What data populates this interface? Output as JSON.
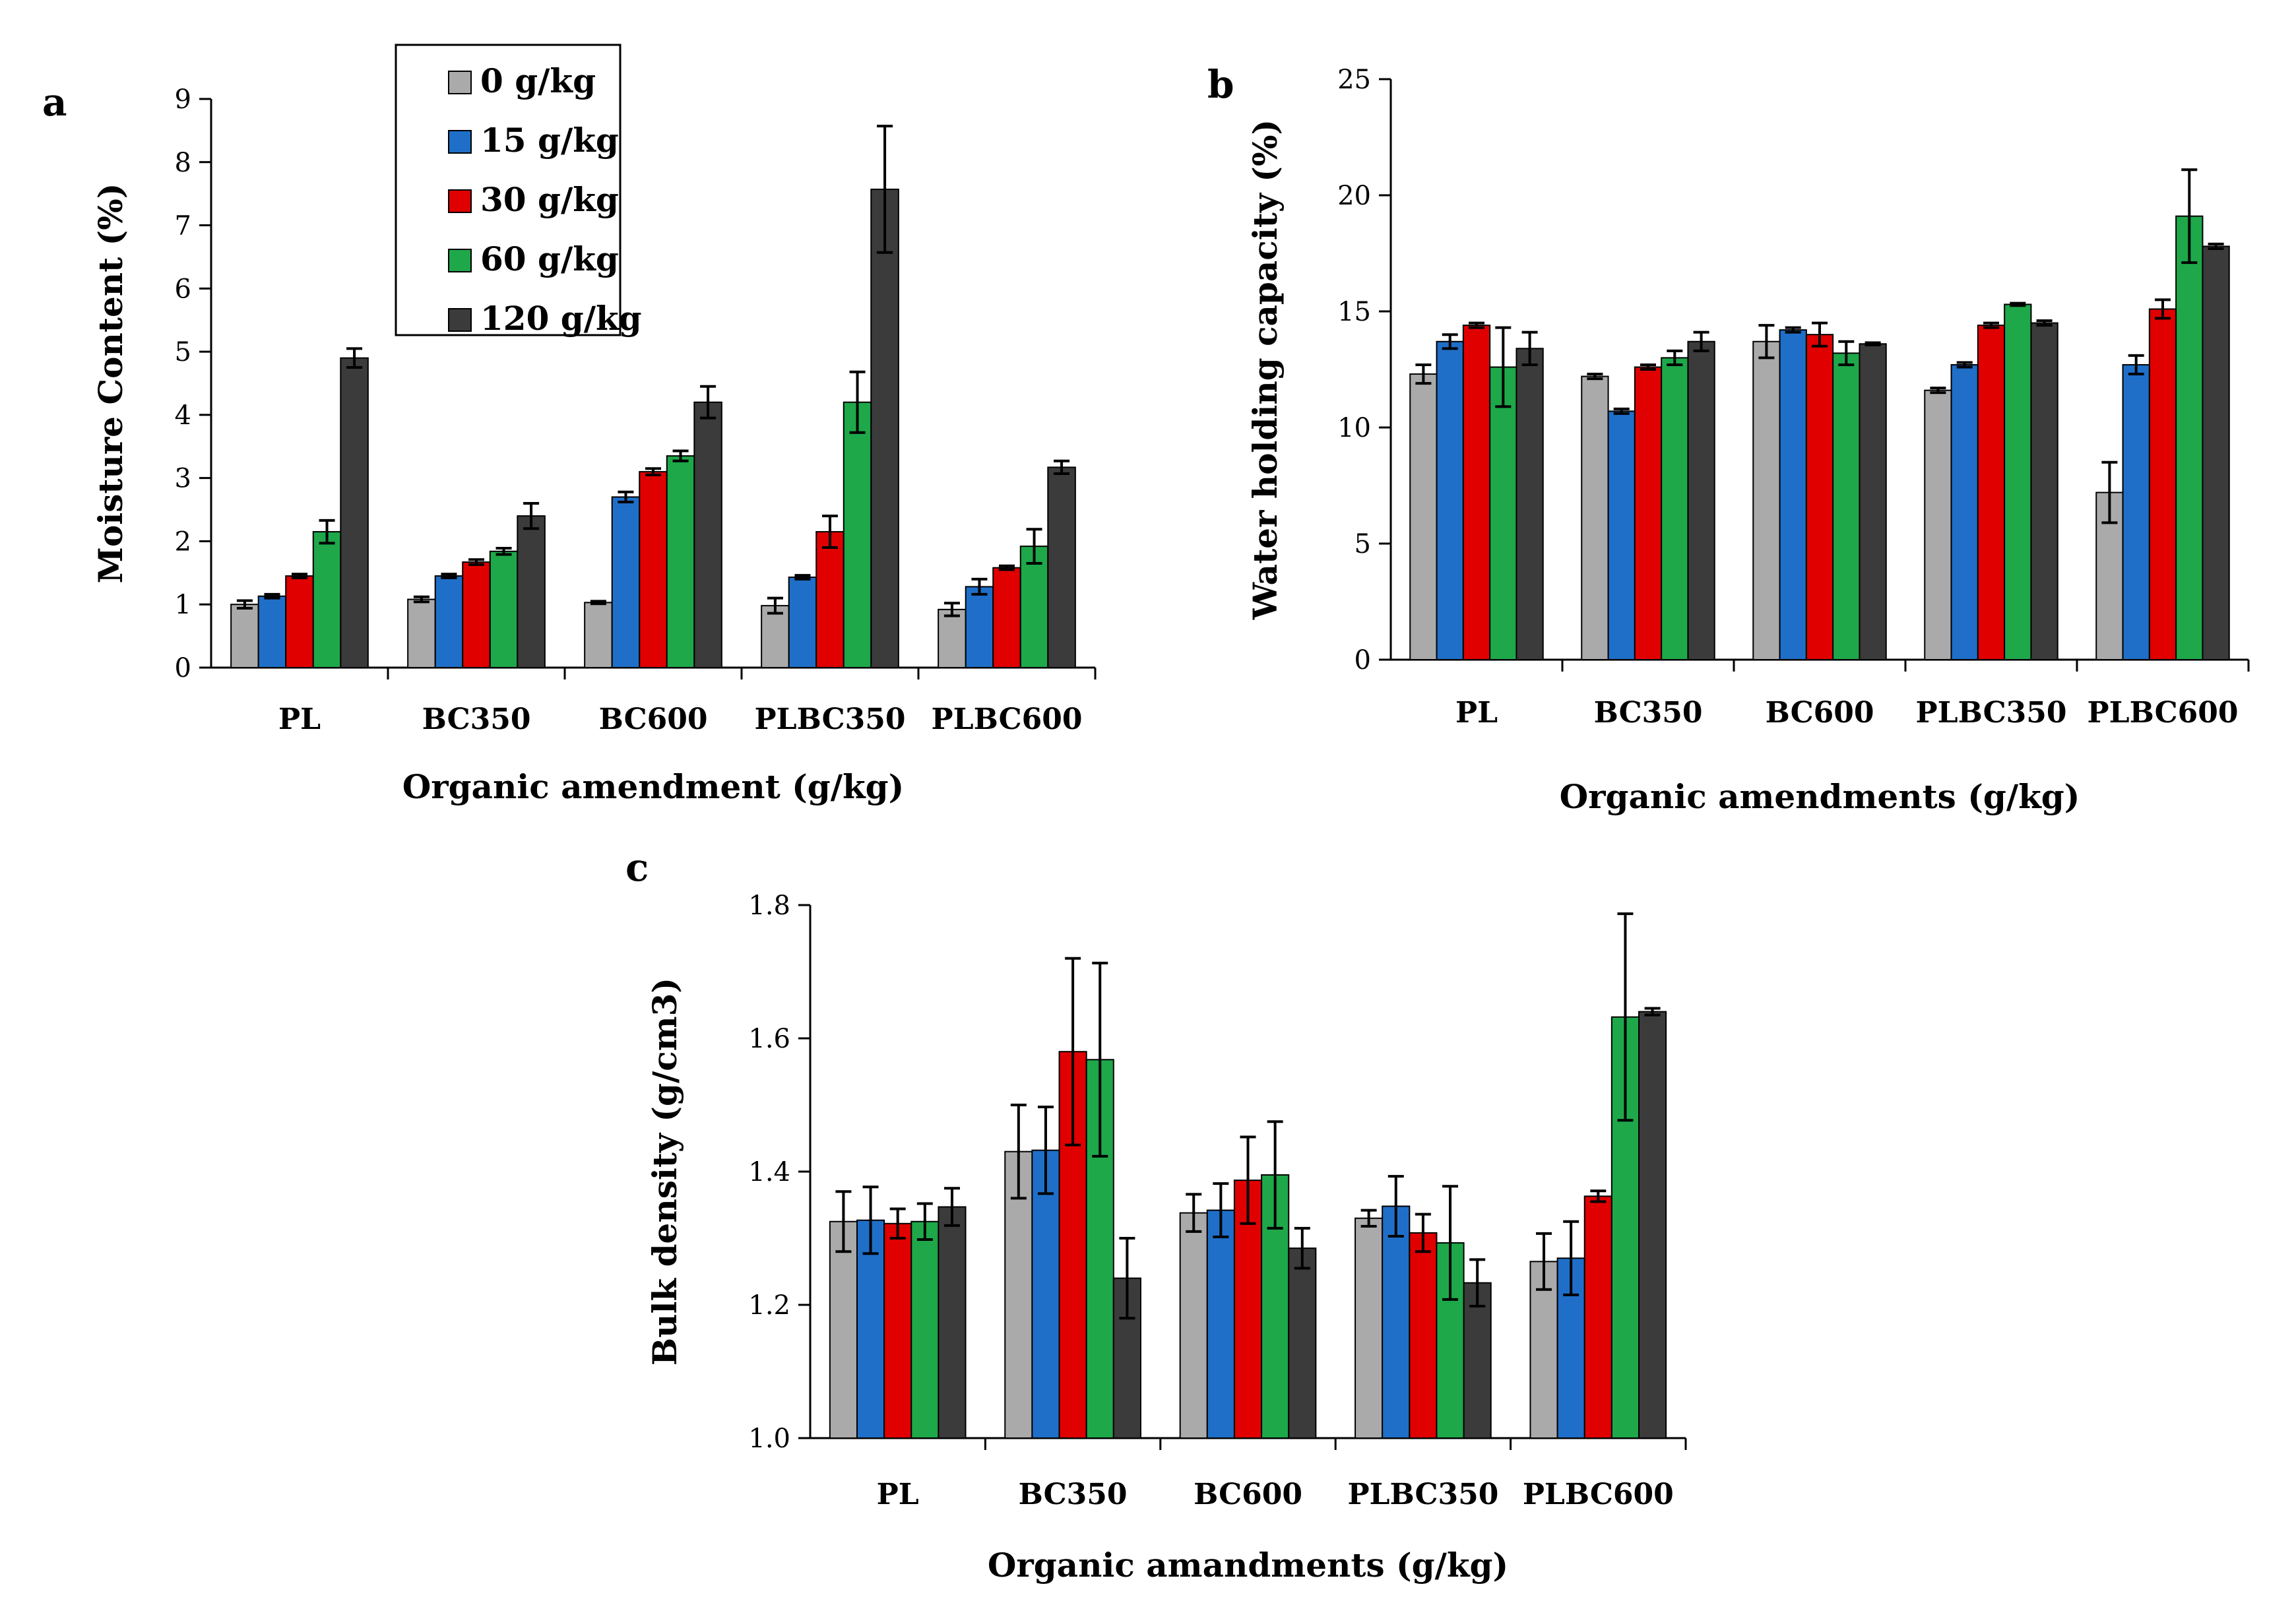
{
  "legend": {
    "title": "",
    "items": [
      {
        "label": "0 g/kg",
        "color": "#aaaaaa"
      },
      {
        "label": "15 g/kg",
        "color": "#1f6fc8"
      },
      {
        "label": "30 g/kg",
        "color": "#e00000"
      },
      {
        "label": "60 g/kg",
        "color": "#1ea84a"
      },
      {
        "label": "120 g/kg",
        "color": "#3b3b3b"
      }
    ]
  },
  "chart_data": [
    {
      "panel": "a",
      "type": "bar",
      "title": "",
      "xlabel": "Organic amendment (g/kg)",
      "ylabel": "Moisture Content (%)",
      "ylim": [
        0,
        9
      ],
      "yticks": [
        "0",
        "1",
        "2",
        "3",
        "4",
        "5",
        "6",
        "7",
        "8",
        "9"
      ],
      "categories": [
        "PL",
        "BC350",
        "BC600",
        "PLBC350",
        "PLBC600"
      ],
      "series": [
        {
          "name": "0 g/kg",
          "values": [
            1.0,
            1.08,
            1.03,
            0.98,
            0.92
          ],
          "errors": [
            0.06,
            0.04,
            0.02,
            0.12,
            0.1
          ]
        },
        {
          "name": "15 g/kg",
          "values": [
            1.13,
            1.45,
            2.7,
            1.43,
            1.28
          ],
          "errors": [
            0.03,
            0.03,
            0.08,
            0.03,
            0.12
          ]
        },
        {
          "name": "30 g/kg",
          "values": [
            1.45,
            1.67,
            3.1,
            2.15,
            1.58
          ],
          "errors": [
            0.03,
            0.04,
            0.05,
            0.25,
            0.03
          ]
        },
        {
          "name": "60 g/kg",
          "values": [
            2.15,
            1.84,
            3.35,
            4.2,
            1.92
          ],
          "errors": [
            0.18,
            0.05,
            0.08,
            0.48,
            0.27
          ]
        },
        {
          "name": "120 g/kg",
          "values": [
            4.9,
            2.4,
            4.2,
            7.57,
            3.17
          ],
          "errors": [
            0.15,
            0.2,
            0.25,
            1.0,
            0.1
          ]
        }
      ]
    },
    {
      "panel": "b",
      "type": "bar",
      "title": "",
      "xlabel": "Organic amendments (g/kg)",
      "ylabel": "Water holding capacity (%)",
      "ylim": [
        0,
        25
      ],
      "yticks": [
        "0",
        "5",
        "10",
        "15",
        "20",
        "25"
      ],
      "categories": [
        "PL",
        "BC350",
        "BC600",
        "PLBC350",
        "PLBC600"
      ],
      "series": [
        {
          "name": "0 g/kg",
          "values": [
            12.3,
            12.2,
            13.7,
            11.6,
            7.2
          ],
          "errors": [
            0.4,
            0.1,
            0.7,
            0.1,
            1.3
          ]
        },
        {
          "name": "15 g/kg",
          "values": [
            13.7,
            10.7,
            14.2,
            12.7,
            12.7
          ],
          "errors": [
            0.3,
            0.1,
            0.1,
            0.1,
            0.4
          ]
        },
        {
          "name": "30 g/kg",
          "values": [
            14.4,
            12.6,
            14.0,
            14.4,
            15.1
          ],
          "errors": [
            0.1,
            0.1,
            0.5,
            0.1,
            0.4
          ]
        },
        {
          "name": "60 g/kg",
          "values": [
            12.6,
            13.0,
            13.2,
            15.3,
            19.1
          ],
          "errors": [
            1.7,
            0.3,
            0.5,
            0.05,
            2.0
          ]
        },
        {
          "name": "120 g/kg",
          "values": [
            13.4,
            13.7,
            13.6,
            14.5,
            17.8
          ],
          "errors": [
            0.7,
            0.4,
            0.05,
            0.1,
            0.1
          ]
        }
      ]
    },
    {
      "panel": "c",
      "type": "bar",
      "title": "",
      "xlabel": "Organic amandments (g/kg)",
      "ylabel": "Bulk density (g/cm3)",
      "ylim": [
        1.0,
        1.8
      ],
      "yticks": [
        "1.0",
        "1.2",
        "1.4",
        "1.6",
        "1.8"
      ],
      "categories": [
        "PL",
        "BC350",
        "BC600",
        "PLBC350",
        "PLBC600"
      ],
      "series": [
        {
          "name": "0 g/kg",
          "values": [
            1.325,
            1.43,
            1.338,
            1.33,
            1.265
          ],
          "errors": [
            0.045,
            0.07,
            0.028,
            0.012,
            0.042
          ]
        },
        {
          "name": "15 g/kg",
          "values": [
            1.327,
            1.432,
            1.342,
            1.348,
            1.27
          ],
          "errors": [
            0.05,
            0.065,
            0.04,
            0.045,
            0.055
          ]
        },
        {
          "name": "30 g/kg",
          "values": [
            1.322,
            1.58,
            1.387,
            1.308,
            1.363
          ],
          "errors": [
            0.022,
            0.14,
            0.065,
            0.028,
            0.008
          ]
        },
        {
          "name": "60 g/kg",
          "values": [
            1.325,
            1.568,
            1.395,
            1.293,
            1.632
          ],
          "errors": [
            0.027,
            0.145,
            0.08,
            0.085,
            0.155
          ]
        },
        {
          "name": "120 g/kg",
          "values": [
            1.347,
            1.24,
            1.285,
            1.233,
            1.64
          ],
          "errors": [
            0.028,
            0.06,
            0.03,
            0.035,
            0.005
          ]
        }
      ]
    }
  ]
}
